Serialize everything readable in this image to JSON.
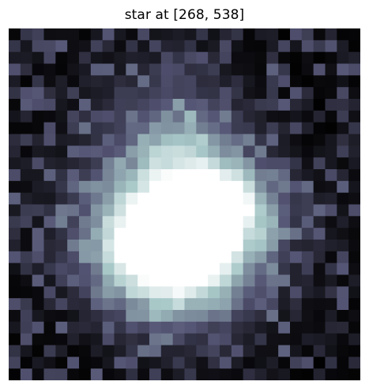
{
  "title": "star at [268, 538]",
  "image": {
    "colormap": "bone",
    "grid_size": 30,
    "colors": {
      "dark": "#060609",
      "mid": "#6f6f8f",
      "light": "#a8c4c4",
      "bright": "#fbffff"
    }
  }
}
